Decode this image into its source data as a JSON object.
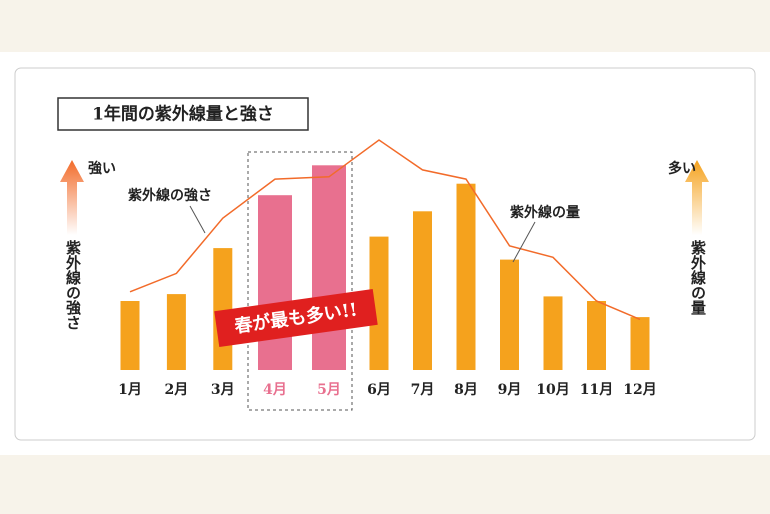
{
  "chart_data": {
    "type": "bar-line",
    "title": "1年間の紫外線量と強さ",
    "categories": [
      "1月",
      "2月",
      "3月",
      "4月",
      "5月",
      "6月",
      "7月",
      "8月",
      "9月",
      "10月",
      "11月",
      "12月"
    ],
    "series": [
      {
        "name": "紫外線の量",
        "kind": "bar",
        "color": "#f5a21d",
        "highlight_color": "#e8708f",
        "highlight": [
          3,
          4
        ],
        "values": [
          30,
          33,
          53,
          76,
          89,
          58,
          69,
          81,
          48,
          32,
          30,
          23
        ]
      },
      {
        "name": "紫外線の強さ",
        "kind": "line",
        "color": "#f26b2a",
        "values": [
          34,
          42,
          66,
          83,
          84,
          100,
          87,
          83,
          54,
          49,
          30,
          22
        ]
      }
    ],
    "ylim": [
      0,
      100
    ],
    "left_axis": {
      "label": "紫外線の強さ",
      "arrow_label": "強い",
      "color": "#f26b2a"
    },
    "right_axis": {
      "label": "紫外線の量",
      "arrow_label": "多い",
      "color": "#f5a21d"
    },
    "badge": "春が最も多い!!"
  }
}
